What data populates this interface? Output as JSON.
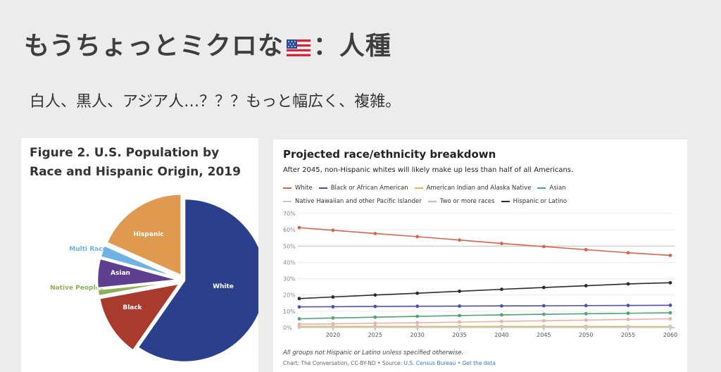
{
  "slide": {
    "title_part1": "もうちょっとミクロな",
    "title_part2": "：人種",
    "subtitle": "白人、黒人、アジア人…？？？もっと幅広く、複雑。"
  },
  "pie_figure": {
    "title": "Figure 2. U.S. Population by Race and Hispanic Origin, 2019",
    "chart_data": {
      "type": "pie",
      "slices": [
        {
          "label": "White",
          "percent": 60.1,
          "color": "#2c3f8c",
          "label_color": "#ffffff"
        },
        {
          "label": "Black",
          "percent": 12.5,
          "color": "#a83a2e",
          "label_color": "#ffffff"
        },
        {
          "label": "Native Peoples",
          "percent": 1.3,
          "color": "#8fae5a",
          "label_color": "#8fae5a"
        },
        {
          "label": "Asian",
          "percent": 5.9,
          "color": "#5e3f8f",
          "label_color": "#ffffff"
        },
        {
          "label": "Multi Race",
          "percent": 2.4,
          "color": "#6fb2e3",
          "label_color": "#6fb2e3"
        },
        {
          "label": "Hispanic",
          "percent": 18.5,
          "color": "#e09a4f",
          "label_color": "#ffffff"
        }
      ]
    }
  },
  "line_figure": {
    "title": "Projected race/ethnicity breakdown",
    "subtitle": "After 2045, non-Hispanic whites will likely make up less than half of all Americans.",
    "footnote": "All groups not Hispanic or Latino unless specified otherwise.",
    "source_prefix": "Chart: The Conversation, CC-BY-ND • Source:",
    "source_link": "U.S. Census Bureau",
    "source_sep": " • ",
    "data_link": "Get the data",
    "chart_data": {
      "type": "line",
      "x": [
        2016,
        2020,
        2025,
        2030,
        2035,
        2040,
        2045,
        2050,
        2055,
        2060
      ],
      "x_ticks": [
        2020,
        2025,
        2030,
        2035,
        2040,
        2045,
        2050,
        2055,
        2060
      ],
      "x_tick_labels": [
        "2020",
        "2025",
        "2030",
        "2035",
        "2040",
        "2045",
        "2050",
        "2055",
        "2060"
      ],
      "y_ticks": [
        0,
        10,
        20,
        30,
        40,
        50,
        60,
        70
      ],
      "y_tick_labels": [
        "0%",
        "10%",
        "20%",
        "30%",
        "40%",
        "50%",
        "60%",
        "70%"
      ],
      "ylim": [
        0,
        70
      ],
      "grid": true,
      "highlight_line": 50,
      "legend_placement": "top",
      "series": [
        {
          "name": "White",
          "color": "#d9624f",
          "values": [
            61.3,
            59.7,
            57.7,
            55.8,
            53.7,
            51.6,
            49.7,
            47.8,
            45.9,
            44.3
          ]
        },
        {
          "name": "Black or African American",
          "color": "#4c4fae",
          "values": [
            12.7,
            12.8,
            13.0,
            13.1,
            13.2,
            13.3,
            13.4,
            13.5,
            13.6,
            13.7
          ]
        },
        {
          "name": "American Indian and Alaska Native",
          "color": "#e5b34a",
          "values": [
            0.7,
            0.7,
            0.7,
            0.7,
            0.7,
            0.7,
            0.7,
            0.7,
            0.6,
            0.6
          ]
        },
        {
          "name": "Asian",
          "color": "#4aa577",
          "values": [
            5.4,
            5.9,
            6.4,
            6.9,
            7.4,
            7.8,
            8.2,
            8.5,
            8.8,
            9.1
          ]
        },
        {
          "name": "Native Hawaiian and other Pacific Islander",
          "color": "#c8c8c8",
          "values": [
            0.2,
            0.2,
            0.2,
            0.2,
            0.2,
            0.2,
            0.2,
            0.2,
            0.2,
            0.2
          ]
        },
        {
          "name": "Two or more races",
          "color": "#eab0a8",
          "values": [
            2.1,
            2.3,
            2.7,
            3.0,
            3.4,
            3.8,
            4.2,
            4.6,
            5.0,
            5.4
          ]
        },
        {
          "name": "Hispanic or Latino",
          "color": "#2b2b2b",
          "values": [
            17.8,
            18.8,
            20.0,
            21.1,
            22.3,
            23.5,
            24.6,
            25.7,
            26.8,
            27.5
          ]
        }
      ]
    }
  }
}
